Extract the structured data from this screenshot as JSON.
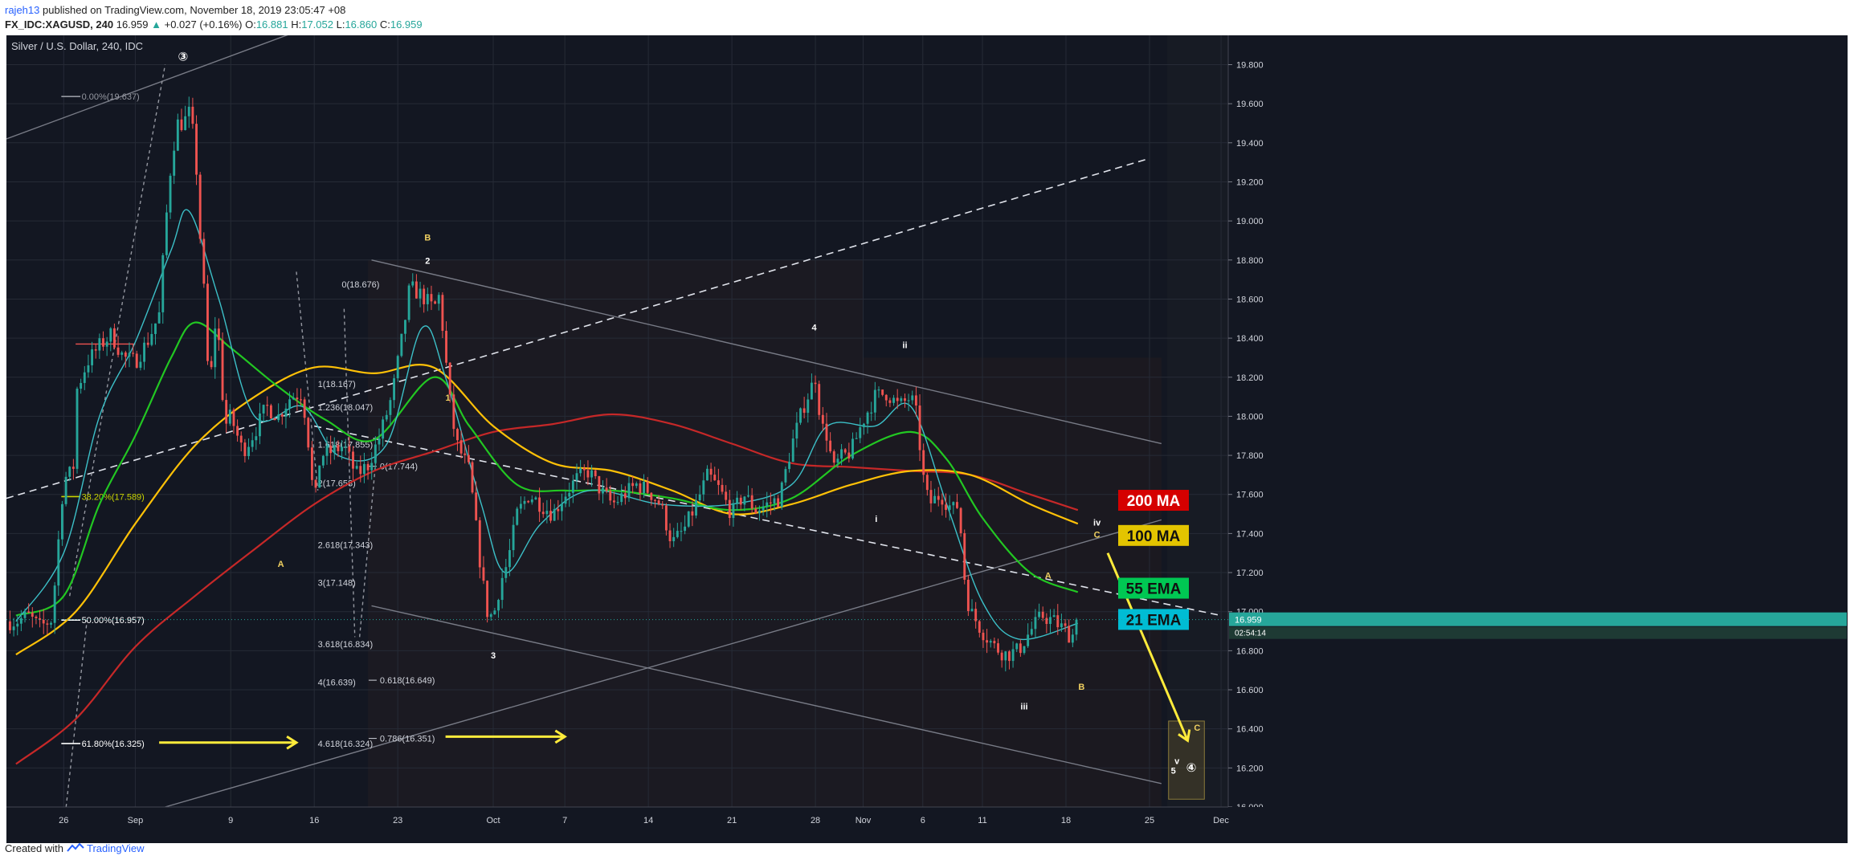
{
  "header": {
    "author": "rajeh13",
    "published_text": "published on TradingView.com, November 18, 2019 23:05:47 +08",
    "symbol": "FX_IDC:XAGUSD, 240",
    "last": "16.959",
    "change": "+0.027 (+0.16%)",
    "o_label": "O:",
    "o": "16.881",
    "h_label": "H:",
    "h": "17.052",
    "l_label": "L:",
    "l": "16.860",
    "c_label": "C:",
    "c": "16.959"
  },
  "footer": {
    "created_with": "Created with",
    "brand": "TradingView"
  },
  "colors": {
    "background": "#131722",
    "grid": "#262b36",
    "candle_up": "#26a69a",
    "candle_down": "#ef5350",
    "ma200": "#c62828",
    "ma100": "#ffc107",
    "ema55": "#22c722",
    "ema21": "#3cc0c8",
    "arrow": "#ffeb3b",
    "projection_box": "#6b5b2f"
  },
  "chart_data": {
    "type": "candlestick",
    "title": "Silver / U.S. Dollar, 240, IDC",
    "ylim": [
      16.0,
      19.95
    ],
    "y_ticks": [
      16.0,
      16.2,
      16.4,
      16.6,
      16.8,
      17.0,
      17.2,
      17.4,
      17.6,
      17.8,
      18.0,
      18.2,
      18.4,
      18.6,
      18.8,
      19.0,
      19.2,
      19.4,
      19.6,
      19.8
    ],
    "y_tick_labels": [
      "16.000",
      "16.200",
      "16.400",
      "16.600",
      "16.800",
      "17.000",
      "17.200",
      "17.400",
      "17.600",
      "17.800",
      "18.000",
      "18.200",
      "18.400",
      "18.600",
      "18.800",
      "19.000",
      "19.200",
      "19.400",
      "19.600",
      "19.800"
    ],
    "x_ticks": [
      "26",
      "Sep",
      "9",
      "16",
      "23",
      "Oct",
      "7",
      "14",
      "21",
      "28",
      "Nov",
      "6",
      "11",
      "18",
      "25",
      "Dec"
    ],
    "x_tick_days": [
      -6,
      0,
      8,
      15,
      22,
      30,
      36,
      43,
      50,
      57,
      61,
      66,
      71,
      78,
      85,
      91
    ],
    "last_price": 16.959,
    "last_price_label": "16.959",
    "countdown_label": "02:54:14",
    "close_path": [
      {
        "d": -10.0,
        "p": 16.95
      },
      {
        "d": -9.0,
        "p": 16.98
      },
      {
        "d": -8.0,
        "p": 16.92
      },
      {
        "d": -7.0,
        "p": 16.96
      },
      {
        "d": -6.5,
        "p": 17.32
      },
      {
        "d": -6.0,
        "p": 17.68
      },
      {
        "d": -5.2,
        "p": 17.72
      },
      {
        "d": -5.0,
        "p": 18.12
      },
      {
        "d": -4.0,
        "p": 18.28
      },
      {
        "d": -3.0,
        "p": 18.36
      },
      {
        "d": -2.0,
        "p": 18.42
      },
      {
        "d": -1.0,
        "p": 18.3
      },
      {
        "d": 0.0,
        "p": 18.28
      },
      {
        "d": 1.0,
        "p": 18.38
      },
      {
        "d": 2.0,
        "p": 18.52
      },
      {
        "d": 2.5,
        "p": 18.95
      },
      {
        "d": 3.0,
        "p": 19.3
      },
      {
        "d": 3.5,
        "p": 19.5
      },
      {
        "d": 4.0,
        "p": 19.5
      },
      {
        "d": 4.5,
        "p": 19.55
      },
      {
        "d": 5.0,
        "p": 19.4
      },
      {
        "d": 5.4,
        "p": 18.95
      },
      {
        "d": 5.8,
        "p": 18.6
      },
      {
        "d": 6.2,
        "p": 18.1
      },
      {
        "d": 6.8,
        "p": 18.55
      },
      {
        "d": 7.5,
        "p": 17.95
      },
      {
        "d": 8.0,
        "p": 18.0
      },
      {
        "d": 9.0,
        "p": 17.82
      },
      {
        "d": 10.0,
        "p": 17.92
      },
      {
        "d": 11.0,
        "p": 18.05
      },
      {
        "d": 12.0,
        "p": 18.0
      },
      {
        "d": 13.0,
        "p": 18.1
      },
      {
        "d": 14.0,
        "p": 18.12
      },
      {
        "d": 14.6,
        "p": 17.82
      },
      {
        "d": 15.0,
        "p": 17.52
      },
      {
        "d": 15.5,
        "p": 17.8
      },
      {
        "d": 16.5,
        "p": 17.82
      },
      {
        "d": 17.5,
        "p": 17.85
      },
      {
        "d": 18.5,
        "p": 17.7
      },
      {
        "d": 19.5,
        "p": 17.75
      },
      {
        "d": 20.5,
        "p": 17.9
      },
      {
        "d": 21.5,
        "p": 18.1
      },
      {
        "d": 22.5,
        "p": 18.45
      },
      {
        "d": 23.0,
        "p": 18.66
      },
      {
        "d": 24.0,
        "p": 18.62
      },
      {
        "d": 25.0,
        "p": 18.55
      },
      {
        "d": 25.5,
        "p": 18.62
      },
      {
        "d": 26.0,
        "p": 18.3
      },
      {
        "d": 26.5,
        "p": 18.0
      },
      {
        "d": 27.0,
        "p": 17.85
      },
      {
        "d": 28.0,
        "p": 17.72
      },
      {
        "d": 29.0,
        "p": 17.2
      },
      {
        "d": 29.5,
        "p": 17.0
      },
      {
        "d": 30.0,
        "p": 16.97
      },
      {
        "d": 30.6,
        "p": 17.15
      },
      {
        "d": 31.2,
        "p": 17.25
      },
      {
        "d": 32.0,
        "p": 17.5
      },
      {
        "d": 33.0,
        "p": 17.6
      },
      {
        "d": 34.0,
        "p": 17.55
      },
      {
        "d": 35.0,
        "p": 17.5
      },
      {
        "d": 36.0,
        "p": 17.6
      },
      {
        "d": 37.0,
        "p": 17.68
      },
      {
        "d": 38.0,
        "p": 17.72
      },
      {
        "d": 39.0,
        "p": 17.62
      },
      {
        "d": 40.0,
        "p": 17.55
      },
      {
        "d": 41.0,
        "p": 17.6
      },
      {
        "d": 42.0,
        "p": 17.65
      },
      {
        "d": 43.0,
        "p": 17.62
      },
      {
        "d": 44.0,
        "p": 17.55
      },
      {
        "d": 45.0,
        "p": 17.35
      },
      {
        "d": 46.0,
        "p": 17.42
      },
      {
        "d": 47.0,
        "p": 17.55
      },
      {
        "d": 48.0,
        "p": 17.7
      },
      {
        "d": 49.0,
        "p": 17.62
      },
      {
        "d": 50.0,
        "p": 17.5
      },
      {
        "d": 51.0,
        "p": 17.6
      },
      {
        "d": 52.0,
        "p": 17.52
      },
      {
        "d": 53.0,
        "p": 17.55
      },
      {
        "d": 54.0,
        "p": 17.58
      },
      {
        "d": 55.0,
        "p": 17.85
      },
      {
        "d": 56.0,
        "p": 18.05
      },
      {
        "d": 57.0,
        "p": 18.2
      },
      {
        "d": 57.5,
        "p": 17.95
      },
      {
        "d": 58.0,
        "p": 17.9
      },
      {
        "d": 58.5,
        "p": 17.72
      },
      {
        "d": 59.0,
        "p": 17.78
      },
      {
        "d": 60.0,
        "p": 17.82
      },
      {
        "d": 61.0,
        "p": 17.98
      },
      {
        "d": 62.0,
        "p": 18.1
      },
      {
        "d": 63.0,
        "p": 18.12
      },
      {
        "d": 64.0,
        "p": 18.05
      },
      {
        "d": 65.0,
        "p": 18.1
      },
      {
        "d": 65.5,
        "p": 18.0
      },
      {
        "d": 66.0,
        "p": 17.7
      },
      {
        "d": 66.5,
        "p": 17.55
      },
      {
        "d": 67.5,
        "p": 17.6
      },
      {
        "d": 68.5,
        "p": 17.52
      },
      {
        "d": 69.0,
        "p": 17.55
      },
      {
        "d": 69.6,
        "p": 17.1
      },
      {
        "d": 70.0,
        "p": 17.0
      },
      {
        "d": 71.0,
        "p": 16.9
      },
      {
        "d": 72.0,
        "p": 16.82
      },
      {
        "d": 73.0,
        "p": 16.78
      },
      {
        "d": 74.0,
        "p": 16.8
      },
      {
        "d": 75.0,
        "p": 16.9
      },
      {
        "d": 76.0,
        "p": 16.98
      },
      {
        "d": 77.0,
        "p": 16.95
      },
      {
        "d": 78.0,
        "p": 16.9
      },
      {
        "d": 78.5,
        "p": 16.87
      },
      {
        "d": 79.0,
        "p": 16.959
      }
    ],
    "moving_averages": [
      {
        "name": "200 MA",
        "points": [
          {
            "d": -10,
            "p": 16.22
          },
          {
            "d": -5,
            "p": 16.45
          },
          {
            "d": 0,
            "p": 16.82
          },
          {
            "d": 5,
            "p": 17.08
          },
          {
            "d": 10,
            "p": 17.32
          },
          {
            "d": 15,
            "p": 17.55
          },
          {
            "d": 20,
            "p": 17.72
          },
          {
            "d": 25,
            "p": 17.82
          },
          {
            "d": 30,
            "p": 17.92
          },
          {
            "d": 35,
            "p": 17.96
          },
          {
            "d": 40,
            "p": 18.01
          },
          {
            "d": 45,
            "p": 17.96
          },
          {
            "d": 50,
            "p": 17.86
          },
          {
            "d": 55,
            "p": 17.76
          },
          {
            "d": 60,
            "p": 17.74
          },
          {
            "d": 65,
            "p": 17.72
          },
          {
            "d": 70,
            "p": 17.7
          },
          {
            "d": 75,
            "p": 17.6
          },
          {
            "d": 79,
            "p": 17.52
          }
        ]
      },
      {
        "name": "100 MA",
        "points": [
          {
            "d": -10,
            "p": 16.78
          },
          {
            "d": -5,
            "p": 17.0
          },
          {
            "d": 0,
            "p": 17.45
          },
          {
            "d": 5,
            "p": 17.85
          },
          {
            "d": 10,
            "p": 18.1
          },
          {
            "d": 15,
            "p": 18.25
          },
          {
            "d": 20,
            "p": 18.22
          },
          {
            "d": 25,
            "p": 18.25
          },
          {
            "d": 30,
            "p": 17.95
          },
          {
            "d": 35,
            "p": 17.76
          },
          {
            "d": 40,
            "p": 17.72
          },
          {
            "d": 45,
            "p": 17.62
          },
          {
            "d": 50,
            "p": 17.5
          },
          {
            "d": 55,
            "p": 17.55
          },
          {
            "d": 60,
            "p": 17.65
          },
          {
            "d": 65,
            "p": 17.72
          },
          {
            "d": 70,
            "p": 17.7
          },
          {
            "d": 75,
            "p": 17.55
          },
          {
            "d": 79,
            "p": 17.45
          }
        ]
      },
      {
        "name": "55 EMA",
        "points": [
          {
            "d": -10,
            "p": 16.98
          },
          {
            "d": -6,
            "p": 17.08
          },
          {
            "d": -3,
            "p": 17.55
          },
          {
            "d": 0,
            "p": 17.9
          },
          {
            "d": 3,
            "p": 18.3
          },
          {
            "d": 5,
            "p": 18.48
          },
          {
            "d": 8,
            "p": 18.35
          },
          {
            "d": 12,
            "p": 18.15
          },
          {
            "d": 16,
            "p": 17.98
          },
          {
            "d": 20,
            "p": 17.88
          },
          {
            "d": 25,
            "p": 18.2
          },
          {
            "d": 28,
            "p": 17.95
          },
          {
            "d": 32,
            "p": 17.65
          },
          {
            "d": 36,
            "p": 17.62
          },
          {
            "d": 40,
            "p": 17.62
          },
          {
            "d": 45,
            "p": 17.58
          },
          {
            "d": 50,
            "p": 17.52
          },
          {
            "d": 55,
            "p": 17.58
          },
          {
            "d": 60,
            "p": 17.8
          },
          {
            "d": 65,
            "p": 17.92
          },
          {
            "d": 68,
            "p": 17.78
          },
          {
            "d": 71,
            "p": 17.48
          },
          {
            "d": 75,
            "p": 17.2
          },
          {
            "d": 79,
            "p": 17.1
          }
        ]
      },
      {
        "name": "21 EMA",
        "points": [
          {
            "d": -10,
            "p": 16.95
          },
          {
            "d": -6,
            "p": 17.3
          },
          {
            "d": -3,
            "p": 18.0
          },
          {
            "d": 0,
            "p": 18.38
          },
          {
            "d": 3,
            "p": 18.85
          },
          {
            "d": 4.5,
            "p": 19.05
          },
          {
            "d": 7,
            "p": 18.6
          },
          {
            "d": 10,
            "p": 18.0
          },
          {
            "d": 14,
            "p": 18.05
          },
          {
            "d": 17,
            "p": 17.8
          },
          {
            "d": 21,
            "p": 17.85
          },
          {
            "d": 24,
            "p": 18.45
          },
          {
            "d": 26,
            "p": 18.2
          },
          {
            "d": 29,
            "p": 17.55
          },
          {
            "d": 31,
            "p": 17.2
          },
          {
            "d": 34,
            "p": 17.45
          },
          {
            "d": 38,
            "p": 17.62
          },
          {
            "d": 44,
            "p": 17.55
          },
          {
            "d": 50,
            "p": 17.55
          },
          {
            "d": 55,
            "p": 17.65
          },
          {
            "d": 58,
            "p": 17.95
          },
          {
            "d": 62,
            "p": 17.95
          },
          {
            "d": 65,
            "p": 18.05
          },
          {
            "d": 68,
            "p": 17.55
          },
          {
            "d": 71,
            "p": 17.05
          },
          {
            "d": 74,
            "p": 16.86
          },
          {
            "d": 79,
            "p": 16.94
          }
        ]
      }
    ],
    "ma_labels": [
      {
        "text": "200 MA",
        "p": 17.57,
        "bg": "#d50000",
        "fg": "#ffffff"
      },
      {
        "text": "100 MA",
        "p": 17.39,
        "bg": "#e3c400",
        "fg": "#111111"
      },
      {
        "text": "55 EMA",
        "p": 17.12,
        "bg": "#00c853",
        "fg": "#111111"
      },
      {
        "text": "21 EMA",
        "p": 16.96,
        "bg": "#00bcd4",
        "fg": "#111111"
      }
    ],
    "fib_levels": [
      {
        "text": "0.00%(19.637)",
        "d": -4.5,
        "p": 19.637
      },
      {
        "text": "38.20%(17.589)",
        "d": -4.5,
        "p": 17.589
      },
      {
        "text": "50.00%(16.957)",
        "d": -4.5,
        "p": 16.957
      },
      {
        "text": "61.80%(16.325)",
        "d": -4.5,
        "p": 16.325
      }
    ],
    "fib_extensions": [
      {
        "text": "0(18.676)",
        "d": 17.3,
        "p": 18.676
      },
      {
        "text": "1(18.167)",
        "d": 15.3,
        "p": 18.167
      },
      {
        "text": "1.236(18.047)",
        "d": 15.3,
        "p": 18.047
      },
      {
        "text": "1.618(17.855)",
        "d": 15.3,
        "p": 17.855
      },
      {
        "text": "2(17.658)",
        "d": 15.3,
        "p": 17.658
      },
      {
        "text": "2.618(17.343)",
        "d": 15.3,
        "p": 17.343
      },
      {
        "text": "3(17.148)",
        "d": 15.3,
        "p": 17.148
      },
      {
        "text": "3.618(16.834)",
        "d": 15.3,
        "p": 16.834
      },
      {
        "text": "4(16.639)",
        "d": 15.3,
        "p": 16.639
      },
      {
        "text": "4.618(16.324)",
        "d": 15.3,
        "p": 16.324
      },
      {
        "text": "0(17.744)",
        "d": 20.5,
        "p": 17.744
      },
      {
        "text": "0.618(16.649)",
        "d": 20.5,
        "p": 16.649
      },
      {
        "text": "0.786(16.351)",
        "d": 20.5,
        "p": 16.351
      }
    ],
    "wave_labels": [
      {
        "text": "③",
        "d": 4.0,
        "p": 19.82,
        "color": "#ffffff"
      },
      {
        "text": "B",
        "d": 24.5,
        "p": 18.9,
        "color": "#f0d060"
      },
      {
        "text": "2",
        "d": 24.5,
        "p": 18.78,
        "color": "#ffffff"
      },
      {
        "text": "1",
        "d": 26.2,
        "p": 18.08,
        "color": "#f0d060"
      },
      {
        "text": "A",
        "d": 12.2,
        "p": 17.23,
        "color": "#f0d060"
      },
      {
        "text": "3",
        "d": 30.0,
        "p": 16.76,
        "color": "#ffffff"
      },
      {
        "text": "4",
        "d": 56.9,
        "p": 18.44,
        "color": "#ffffff"
      },
      {
        "text": "ii",
        "d": 64.5,
        "p": 18.35,
        "color": "#ffffff"
      },
      {
        "text": "i",
        "d": 62.1,
        "p": 17.46,
        "color": "#ffffff"
      },
      {
        "text": "iii",
        "d": 74.5,
        "p": 16.5,
        "color": "#ffffff"
      },
      {
        "text": "A",
        "d": 76.5,
        "p": 17.17,
        "color": "#f0d060"
      },
      {
        "text": "B",
        "d": 79.3,
        "p": 16.6,
        "color": "#f0d060"
      },
      {
        "text": "iv",
        "d": 80.6,
        "p": 17.44,
        "color": "#ffffff"
      },
      {
        "text": "C",
        "d": 80.6,
        "p": 17.38,
        "color": "#f0d060"
      },
      {
        "text": "C",
        "d": 89.0,
        "p": 16.39,
        "color": "#f0d060"
      },
      {
        "text": "v",
        "d": 87.3,
        "p": 16.22,
        "color": "#ffffff"
      },
      {
        "text": "5",
        "d": 87.0,
        "p": 16.17,
        "color": "#ffffff"
      },
      {
        "text": "④",
        "d": 88.5,
        "p": 16.18,
        "color": "#ffffff"
      }
    ],
    "annotations": [
      "Parallel channel with dashed midline",
      "Yellow arrows pointing right at 16.33",
      "Yellow arrow pointing down toward 16.3 target box"
    ]
  }
}
